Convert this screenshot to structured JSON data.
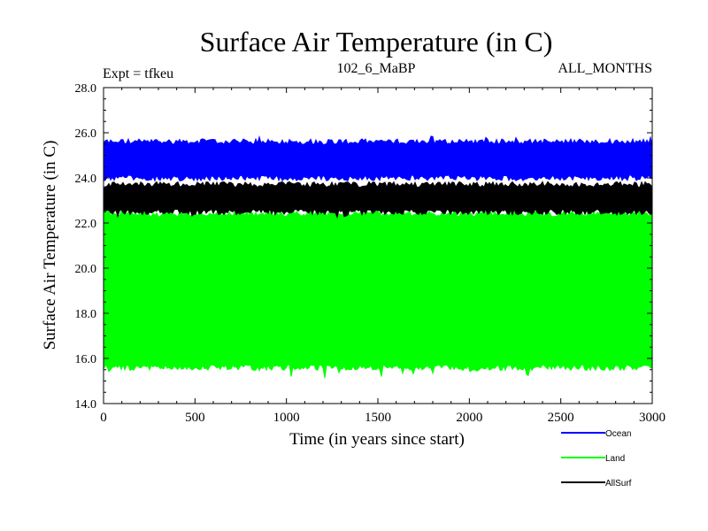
{
  "chart_data": {
    "type": "line",
    "title": "Surface Air Temperature (in C)",
    "subtitle_left": "Expt = tfkeu",
    "subtitle_center": "102_6_MaBP",
    "subtitle_right": "ALL_MONTHS",
    "xlabel": "Time (in years since start)",
    "ylabel": "Surface Air Temperature (in C)",
    "xlim": [
      0,
      3000
    ],
    "ylim": [
      14.0,
      28.0
    ],
    "x_ticks": [
      0,
      500,
      1000,
      1500,
      2000,
      2500,
      3000
    ],
    "x_tick_labels": [
      "0",
      "500",
      "1000",
      "1500",
      "2000",
      "2500",
      "3000"
    ],
    "y_ticks": [
      14.0,
      16.0,
      18.0,
      20.0,
      22.0,
      24.0,
      26.0,
      28.0
    ],
    "y_tick_labels": [
      "14.0",
      "16.0",
      "18.0",
      "20.0",
      "22.0",
      "24.0",
      "26.0",
      "28.0"
    ],
    "grid": false,
    "legend_position": "bottom-right",
    "series": [
      {
        "name": "Ocean",
        "color": "#0000ff",
        "band_min": 24.0,
        "band_max": 25.6,
        "peak_min": 23.8,
        "peak_max": 26.0
      },
      {
        "name": "Land",
        "color": "#00ff00",
        "band_min": 15.6,
        "band_max": 22.4,
        "peak_min": 15.0,
        "peak_max": 23.1
      },
      {
        "name": "AllSurf",
        "color": "#000000",
        "band_min": 22.5,
        "band_max": 23.7,
        "peak_min": 22.1,
        "peak_max": 23.9
      }
    ]
  }
}
